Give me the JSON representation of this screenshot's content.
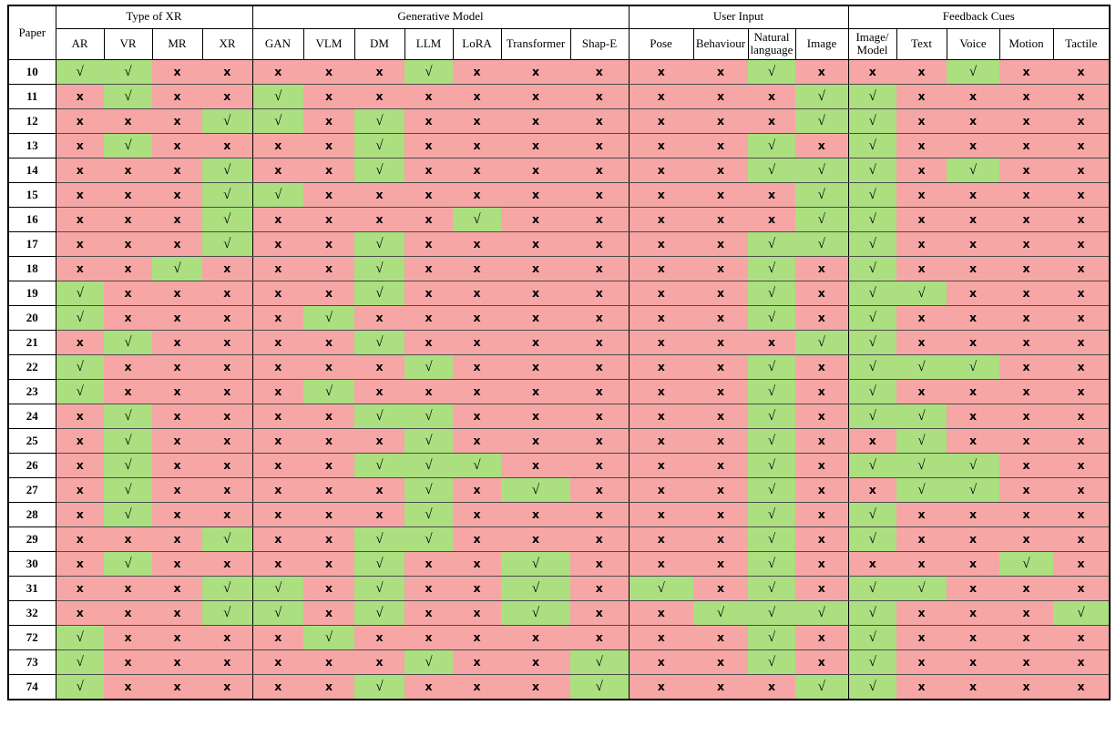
{
  "page": {
    "background": "#ffffff"
  },
  "chart_data": {
    "type": "table",
    "corner_label": "Paper",
    "column_groups": [
      {
        "label": "Type of XR",
        "columns": [
          "AR",
          "VR",
          "MR",
          "XR"
        ]
      },
      {
        "label": "Generative Model",
        "columns": [
          "GAN",
          "VLM",
          "DM",
          "LLM",
          "LoRA",
          "Transformer",
          "Shap-E"
        ]
      },
      {
        "label": "User Input",
        "columns": [
          "Pose",
          "Behaviour",
          "Natural\nlanguage",
          "Image"
        ]
      },
      {
        "label": "Feedback Cues",
        "columns": [
          "Image/\nModel",
          "Text",
          "Voice",
          "Motion",
          "Tactile"
        ]
      }
    ],
    "glyphs": {
      "check": "√",
      "cross": "x"
    },
    "colors": {
      "check_bg": "#abdf80",
      "cross_bg": "#f6a6a5",
      "border": "#000000"
    },
    "rows": [
      {
        "paper": "10",
        "values": [
          1,
          1,
          0,
          0,
          0,
          0,
          0,
          1,
          0,
          0,
          0,
          0,
          0,
          1,
          0,
          0,
          0,
          1,
          0,
          0
        ]
      },
      {
        "paper": "11",
        "values": [
          0,
          1,
          0,
          0,
          1,
          0,
          0,
          0,
          0,
          0,
          0,
          0,
          0,
          0,
          1,
          1,
          0,
          0,
          0,
          0
        ]
      },
      {
        "paper": "12",
        "values": [
          0,
          0,
          0,
          1,
          1,
          0,
          1,
          0,
          0,
          0,
          0,
          0,
          0,
          0,
          1,
          1,
          0,
          0,
          0,
          0
        ]
      },
      {
        "paper": "13",
        "values": [
          0,
          1,
          0,
          0,
          0,
          0,
          1,
          0,
          0,
          0,
          0,
          0,
          0,
          1,
          0,
          1,
          0,
          0,
          0,
          0
        ]
      },
      {
        "paper": "14",
        "values": [
          0,
          0,
          0,
          1,
          0,
          0,
          1,
          0,
          0,
          0,
          0,
          0,
          0,
          1,
          1,
          1,
          0,
          1,
          0,
          0
        ]
      },
      {
        "paper": "15",
        "values": [
          0,
          0,
          0,
          1,
          1,
          0,
          0,
          0,
          0,
          0,
          0,
          0,
          0,
          0,
          1,
          1,
          0,
          0,
          0,
          0
        ]
      },
      {
        "paper": "16",
        "values": [
          0,
          0,
          0,
          1,
          0,
          0,
          0,
          0,
          1,
          0,
          0,
          0,
          0,
          0,
          1,
          1,
          0,
          0,
          0,
          0
        ]
      },
      {
        "paper": "17",
        "values": [
          0,
          0,
          0,
          1,
          0,
          0,
          1,
          0,
          0,
          0,
          0,
          0,
          0,
          1,
          1,
          1,
          0,
          0,
          0,
          0
        ]
      },
      {
        "paper": "18",
        "values": [
          0,
          0,
          1,
          0,
          0,
          0,
          1,
          0,
          0,
          0,
          0,
          0,
          0,
          1,
          0,
          1,
          0,
          0,
          0,
          0
        ]
      },
      {
        "paper": "19",
        "values": [
          1,
          0,
          0,
          0,
          0,
          0,
          1,
          0,
          0,
          0,
          0,
          0,
          0,
          1,
          0,
          1,
          1,
          0,
          0,
          0
        ]
      },
      {
        "paper": "20",
        "values": [
          1,
          0,
          0,
          0,
          0,
          1,
          0,
          0,
          0,
          0,
          0,
          0,
          0,
          1,
          0,
          1,
          0,
          0,
          0,
          0
        ]
      },
      {
        "paper": "21",
        "values": [
          0,
          1,
          0,
          0,
          0,
          0,
          1,
          0,
          0,
          0,
          0,
          0,
          0,
          0,
          1,
          1,
          0,
          0,
          0,
          0
        ]
      },
      {
        "paper": "22",
        "values": [
          1,
          0,
          0,
          0,
          0,
          0,
          0,
          1,
          0,
          0,
          0,
          0,
          0,
          1,
          0,
          1,
          1,
          1,
          0,
          0
        ]
      },
      {
        "paper": "23",
        "values": [
          1,
          0,
          0,
          0,
          0,
          1,
          0,
          0,
          0,
          0,
          0,
          0,
          0,
          1,
          0,
          1,
          0,
          0,
          0,
          0
        ]
      },
      {
        "paper": "24",
        "values": [
          0,
          1,
          0,
          0,
          0,
          0,
          1,
          1,
          0,
          0,
          0,
          0,
          0,
          1,
          0,
          1,
          1,
          0,
          0,
          0
        ]
      },
      {
        "paper": "25",
        "values": [
          0,
          1,
          0,
          0,
          0,
          0,
          0,
          1,
          0,
          0,
          0,
          0,
          0,
          1,
          0,
          0,
          1,
          0,
          0,
          0
        ]
      },
      {
        "paper": "26",
        "values": [
          0,
          1,
          0,
          0,
          0,
          0,
          1,
          1,
          1,
          0,
          0,
          0,
          0,
          1,
          0,
          1,
          1,
          1,
          0,
          0
        ]
      },
      {
        "paper": "27",
        "values": [
          0,
          1,
          0,
          0,
          0,
          0,
          0,
          1,
          0,
          1,
          0,
          0,
          0,
          1,
          0,
          0,
          1,
          1,
          0,
          0
        ]
      },
      {
        "paper": "28",
        "values": [
          0,
          1,
          0,
          0,
          0,
          0,
          0,
          1,
          0,
          0,
          0,
          0,
          0,
          1,
          0,
          1,
          0,
          0,
          0,
          0
        ]
      },
      {
        "paper": "29",
        "values": [
          0,
          0,
          0,
          1,
          0,
          0,
          1,
          1,
          0,
          0,
          0,
          0,
          0,
          1,
          0,
          1,
          0,
          0,
          0,
          0
        ]
      },
      {
        "paper": "30",
        "values": [
          0,
          1,
          0,
          0,
          0,
          0,
          1,
          0,
          0,
          1,
          0,
          0,
          0,
          1,
          0,
          0,
          0,
          0,
          1,
          0
        ]
      },
      {
        "paper": "31",
        "values": [
          0,
          0,
          0,
          1,
          1,
          0,
          1,
          0,
          0,
          1,
          0,
          1,
          0,
          1,
          0,
          1,
          1,
          0,
          0,
          0
        ]
      },
      {
        "paper": "32",
        "values": [
          0,
          0,
          0,
          1,
          1,
          0,
          1,
          0,
          0,
          1,
          0,
          0,
          1,
          1,
          1,
          1,
          0,
          0,
          0,
          1
        ]
      },
      {
        "paper": "72",
        "values": [
          1,
          0,
          0,
          0,
          0,
          1,
          0,
          0,
          0,
          0,
          0,
          0,
          0,
          1,
          0,
          1,
          0,
          0,
          0,
          0
        ]
      },
      {
        "paper": "73",
        "values": [
          1,
          0,
          0,
          0,
          0,
          0,
          0,
          1,
          0,
          0,
          1,
          0,
          0,
          1,
          0,
          1,
          0,
          0,
          0,
          0
        ]
      },
      {
        "paper": "74",
        "values": [
          1,
          0,
          0,
          0,
          0,
          0,
          1,
          0,
          0,
          0,
          1,
          0,
          0,
          0,
          1,
          1,
          0,
          0,
          0,
          0
        ]
      }
    ]
  }
}
